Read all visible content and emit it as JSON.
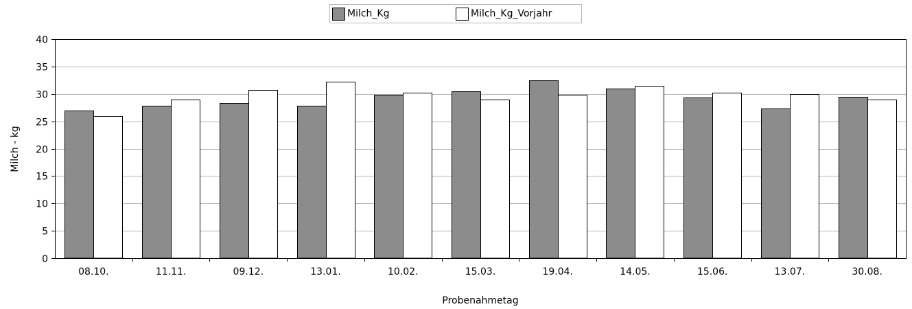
{
  "chart_data": {
    "type": "bar",
    "title": "",
    "xlabel": "Probenahmetag",
    "ylabel": "Milch - kg",
    "ylim": [
      0,
      40
    ],
    "yticks": [
      0,
      5,
      10,
      15,
      20,
      25,
      30,
      35,
      40
    ],
    "grid": true,
    "legend_position": "top-center",
    "categories": [
      "08.10.",
      "11.11.",
      "09.12.",
      "13.01.",
      "10.02.",
      "15.03.",
      "19.04.",
      "14.05.",
      "15.06.",
      "13.07.",
      "30.08."
    ],
    "series": [
      {
        "name": "Milch_Kg",
        "color": "#8c8c8c",
        "values": [
          27.0,
          27.8,
          28.3,
          27.8,
          29.8,
          30.5,
          32.5,
          31.0,
          29.3,
          27.3,
          29.5
        ]
      },
      {
        "name": "Milch_Kg_Vorjahr",
        "color": "#ffffff",
        "values": [
          26.0,
          29.0,
          30.7,
          32.2,
          30.2,
          29.0,
          29.8,
          31.5,
          30.2,
          30.0,
          29.0
        ]
      }
    ]
  }
}
